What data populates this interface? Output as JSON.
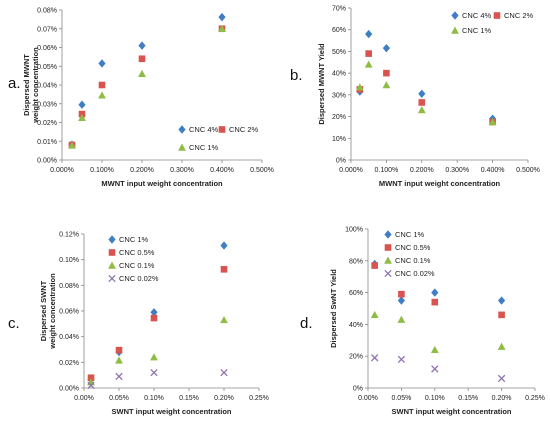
{
  "chart_data": [
    {
      "panel_label": "a.",
      "type": "scatter",
      "xlabel": "MWNT input weight concentration",
      "ylabel": [
        "Dispersed MWNT",
        "weight concentration"
      ],
      "xlim": [
        0,
        0.5
      ],
      "ylim": [
        0,
        0.08
      ],
      "x_ticks": [
        "0.000%",
        "0.100%",
        "0.200%",
        "0.300%",
        "0.400%",
        "0.500%"
      ],
      "y_ticks": [
        "0.00%",
        "0.01%",
        "0.02%",
        "0.03%",
        "0.04%",
        "0.05%",
        "0.06%",
        "0.07%",
        "0.08%"
      ],
      "grid": false,
      "legend_position": "bottom-right",
      "series": [
        {
          "name": "CNC 4%",
          "marker": "diamond",
          "color": "#3f7dc4",
          "x": [
            0.025,
            0.05,
            0.1,
            0.2,
            0.4
          ],
          "y": [
            0.0082,
            0.0295,
            0.0515,
            0.061,
            0.0762
          ]
        },
        {
          "name": "CNC 2%",
          "marker": "square",
          "color": "#d9534f",
          "x": [
            0.025,
            0.05,
            0.1,
            0.2,
            0.4
          ],
          "y": [
            0.008,
            0.0245,
            0.04,
            0.054,
            0.07
          ]
        },
        {
          "name": "CNC 1%",
          "marker": "triangle",
          "color": "#8fbc45",
          "x": [
            0.025,
            0.05,
            0.1,
            0.2,
            0.4
          ],
          "y": [
            0.0078,
            0.0225,
            0.0345,
            0.046,
            0.07
          ]
        }
      ]
    },
    {
      "panel_label": "b.",
      "type": "scatter",
      "xlabel": "MWNT input weight concentration",
      "ylabel": [
        "Dispersed MWNT Yield"
      ],
      "xlim": [
        0,
        0.5
      ],
      "ylim": [
        0,
        70
      ],
      "x_ticks": [
        "0.000%",
        "0.100%",
        "0.200%",
        "0.300%",
        "0.400%",
        "0.500%"
      ],
      "y_ticks": [
        "0%",
        "10%",
        "20%",
        "30%",
        "40%",
        "50%",
        "60%",
        "70%"
      ],
      "grid": false,
      "legend_position": "top-right",
      "series": [
        {
          "name": "CNC 4%",
          "marker": "diamond",
          "color": "#3f7dc4",
          "x": [
            0.025,
            0.05,
            0.1,
            0.2,
            0.4
          ],
          "y": [
            31.5,
            58,
            51.5,
            30.5,
            19
          ]
        },
        {
          "name": "CNC 2%",
          "marker": "square",
          "color": "#d9534f",
          "x": [
            0.025,
            0.05,
            0.1,
            0.2,
            0.4
          ],
          "y": [
            32.5,
            49,
            40,
            26.5,
            17.5
          ]
        },
        {
          "name": "CNC 1%",
          "marker": "triangle",
          "color": "#8fbc45",
          "x": [
            0.025,
            0.05,
            0.1,
            0.2,
            0.4
          ],
          "y": [
            33.5,
            44,
            34.5,
            23,
            17.5
          ]
        }
      ]
    },
    {
      "panel_label": "c.",
      "type": "scatter",
      "xlabel": "SWNT input weight concentration",
      "ylabel": [
        "Dispersed SWNT",
        "weight concentration"
      ],
      "xlim": [
        0,
        0.25
      ],
      "ylim": [
        0,
        0.12
      ],
      "x_ticks": [
        "0.00%",
        "0.05%",
        "0.10%",
        "0.15%",
        "0.20%",
        "0.25%"
      ],
      "y_ticks": [
        "0.00%",
        "0.02%",
        "0.04%",
        "0.06%",
        "0.08%",
        "0.10%",
        "0.12%"
      ],
      "grid": false,
      "legend_position": "top-left",
      "series": [
        {
          "name": "CNC 1%",
          "marker": "diamond",
          "color": "#3f7dc4",
          "x": [
            0.01,
            0.05,
            0.1,
            0.2
          ],
          "y": [
            0.0065,
            0.028,
            0.059,
            0.111
          ]
        },
        {
          "name": "CNC 0.5%",
          "marker": "square",
          "color": "#d9534f",
          "x": [
            0.01,
            0.05,
            0.1,
            0.2
          ],
          "y": [
            0.008,
            0.0295,
            0.0545,
            0.0925
          ]
        },
        {
          "name": "CNC 0.1%",
          "marker": "triangle",
          "color": "#8fbc45",
          "x": [
            0.01,
            0.05,
            0.1,
            0.2
          ],
          "y": [
            0.0045,
            0.0215,
            0.024,
            0.053
          ]
        },
        {
          "name": "CNC 0.02%",
          "marker": "x",
          "color": "#8e73b0",
          "x": [
            0.01,
            0.05,
            0.1,
            0.2
          ],
          "y": [
            0.002,
            0.009,
            0.012,
            0.012
          ]
        }
      ]
    },
    {
      "panel_label": "d.",
      "type": "scatter",
      "xlabel": "SWNT input weight concentration",
      "ylabel": [
        "Dispersed SwNT Yield"
      ],
      "xlim": [
        0,
        0.25
      ],
      "ylim": [
        0,
        100
      ],
      "x_ticks": [
        "0.00%",
        "0.05%",
        "0.10%",
        "0.15%",
        "0.20%",
        "0.25%"
      ],
      "y_ticks": [
        "0%",
        "20%",
        "40%",
        "60%",
        "80%",
        "100%"
      ],
      "grid": false,
      "legend_position": "top-right",
      "series": [
        {
          "name": "CNC 1%",
          "marker": "diamond",
          "color": "#3f7dc4",
          "x": [
            0.01,
            0.05,
            0.1,
            0.2
          ],
          "y": [
            78,
            55,
            60,
            55
          ]
        },
        {
          "name": "CNC 0.5%",
          "marker": "square",
          "color": "#d9534f",
          "x": [
            0.01,
            0.05,
            0.1,
            0.2
          ],
          "y": [
            77,
            59,
            54,
            46
          ]
        },
        {
          "name": "CNC 0.1%",
          "marker": "triangle",
          "color": "#8fbc45",
          "x": [
            0.01,
            0.05,
            0.1,
            0.2
          ],
          "y": [
            46,
            43,
            24,
            26
          ]
        },
        {
          "name": "CNC 0.02%",
          "marker": "x",
          "color": "#8e73b0",
          "x": [
            0.01,
            0.05,
            0.1,
            0.2
          ],
          "y": [
            19,
            18,
            12,
            6
          ]
        }
      ]
    }
  ]
}
